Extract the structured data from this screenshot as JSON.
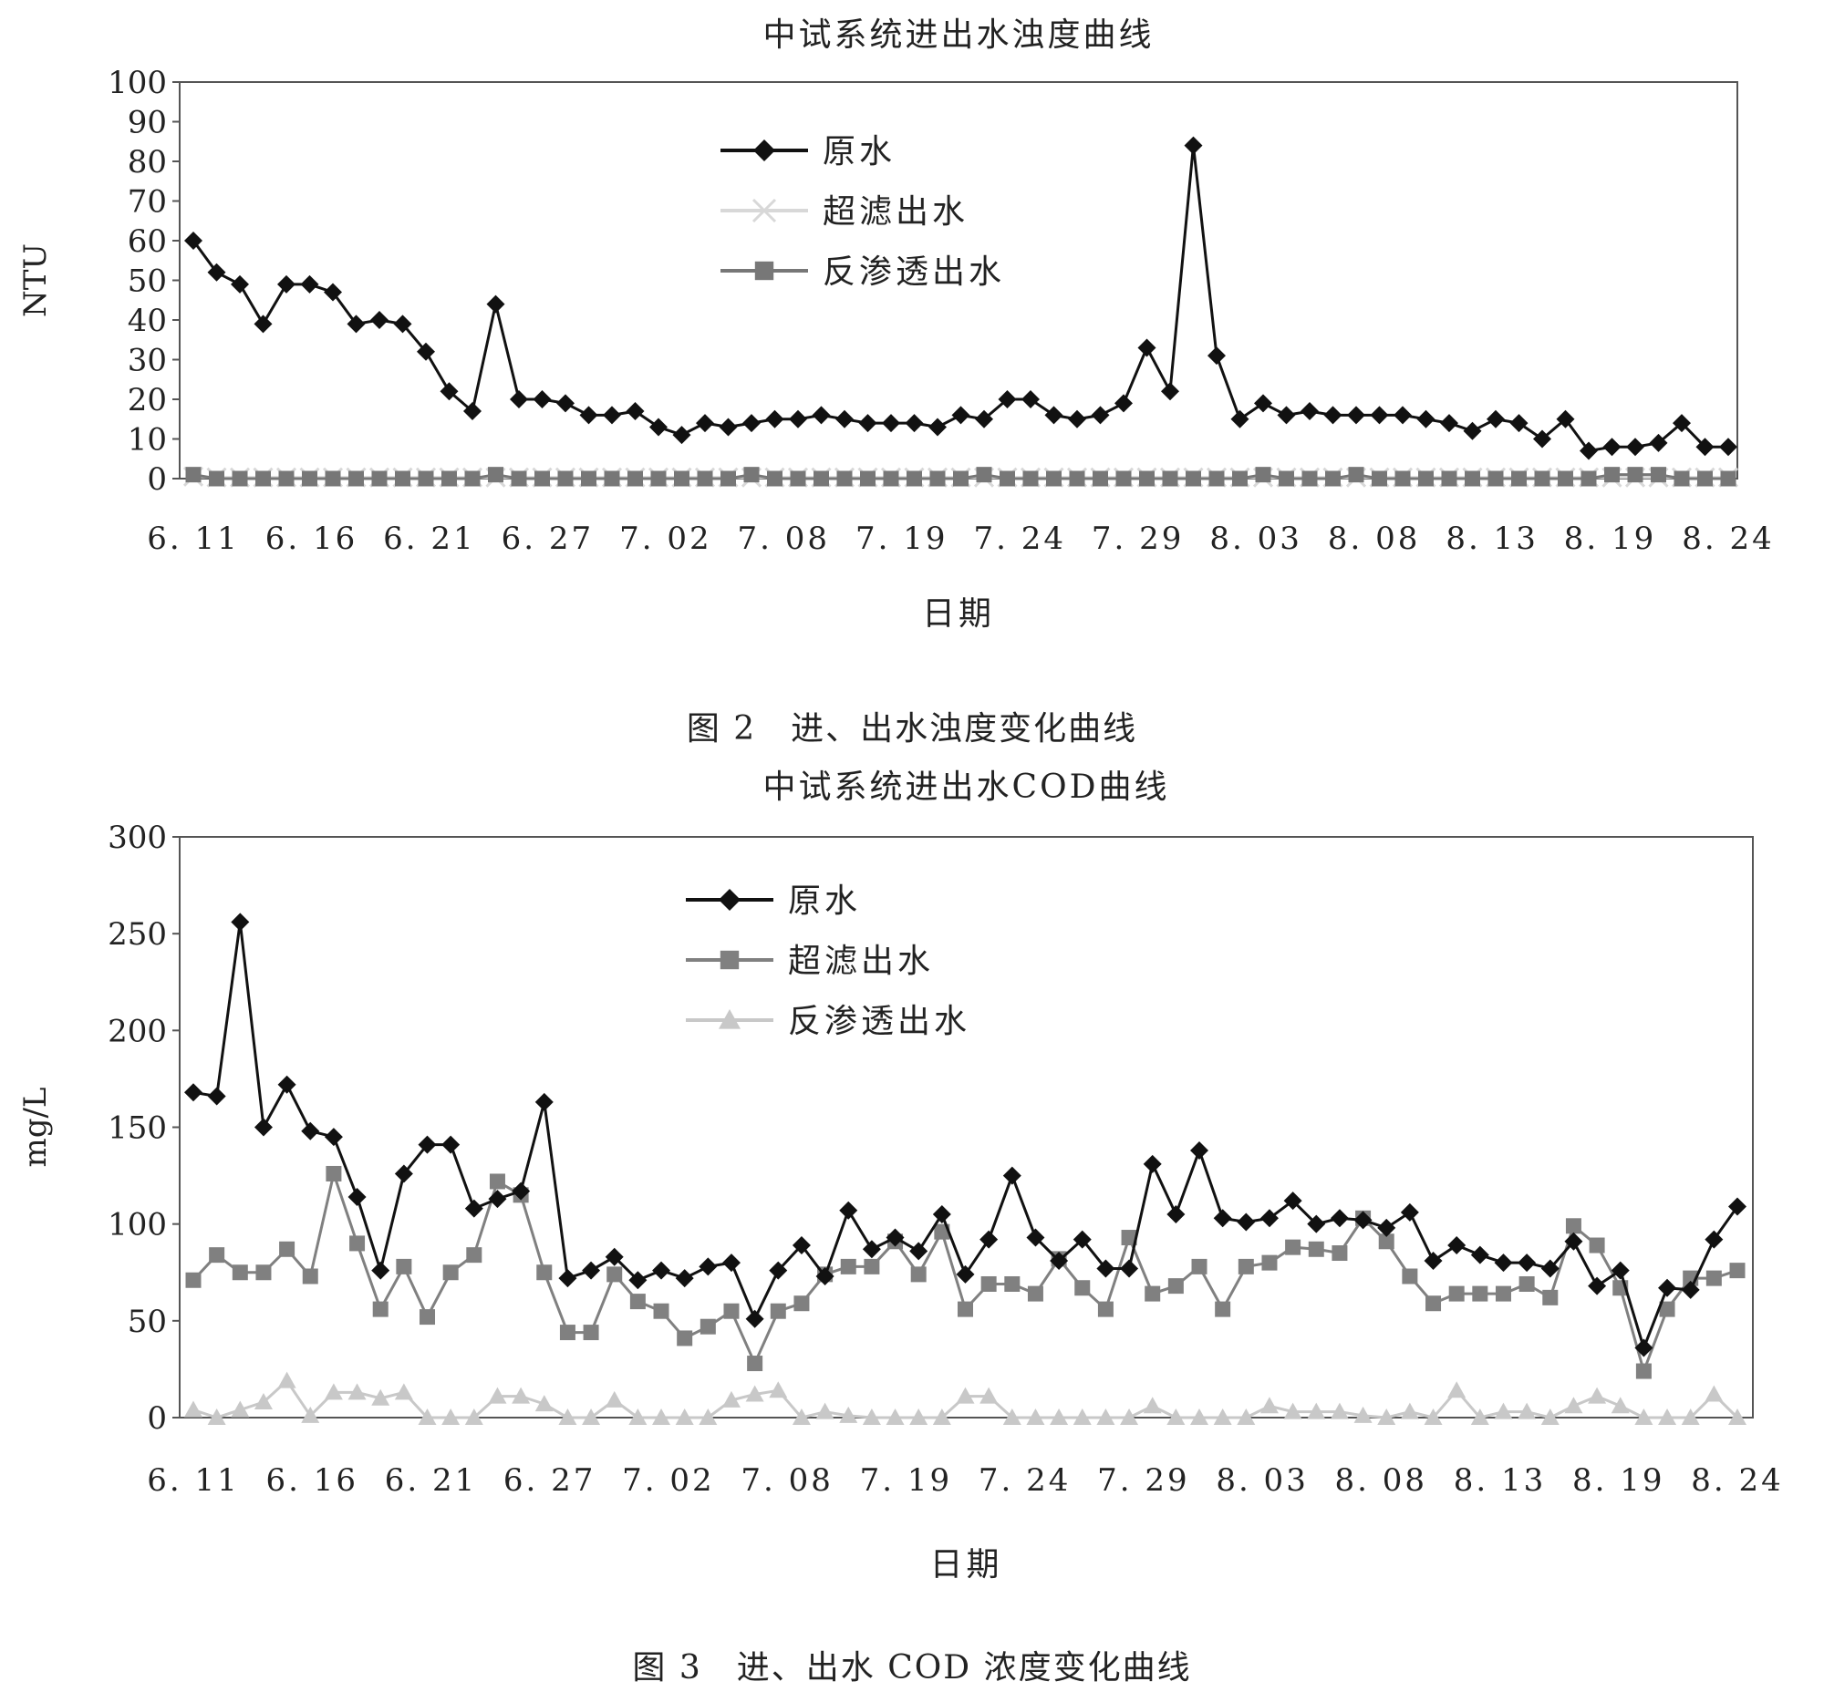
{
  "figures": [
    {
      "caption": "图 2　进、出水浊度变化曲线"
    },
    {
      "caption": "图 3　进、出水 COD 浓度变化曲线"
    }
  ],
  "chart_data": [
    {
      "type": "line",
      "title": "中试系统进出水浊度曲线",
      "xlabel": "日期",
      "ylabel": "NTU",
      "ylim": [
        0,
        100
      ],
      "yticks": [
        0,
        10,
        20,
        30,
        40,
        50,
        60,
        70,
        80,
        90,
        100
      ],
      "grid": false,
      "legend_position": "top-center",
      "x_tick_labels": [
        "6. 11",
        "6. 16",
        "6. 21",
        "6. 27",
        "7. 02",
        "7. 08",
        "7. 19",
        "7. 24",
        "7. 29",
        "8. 03",
        "8. 08",
        "8. 13",
        "8. 19",
        "8. 24"
      ],
      "series": [
        {
          "name": "原水",
          "color": "#111111",
          "marker": "diamond",
          "values": [
            60,
            52,
            49,
            39,
            49,
            49,
            47,
            39,
            40,
            39,
            32,
            22,
            17,
            44,
            20,
            20,
            19,
            16,
            16,
            17,
            13,
            11,
            14,
            13,
            14,
            15,
            15,
            16,
            15,
            14,
            14,
            14,
            13,
            16,
            15,
            20,
            20,
            16,
            15,
            16,
            19,
            33,
            22,
            84,
            31,
            15,
            19,
            16,
            17,
            16,
            16,
            16,
            16,
            15,
            14,
            12,
            15,
            14,
            10,
            15,
            7,
            8,
            8,
            9,
            14,
            8,
            8
          ]
        },
        {
          "name": "超滤出水",
          "color": "#d8d8d8",
          "marker": "x",
          "values": [
            0.5,
            0.3,
            0.3,
            0.3,
            0.3,
            0.3,
            0.3,
            0.3,
            0.3,
            0.3,
            0.3,
            0.3,
            0.3,
            0.3,
            0.3,
            0.3,
            0.3,
            0.3,
            0.3,
            0.3,
            0.3,
            0.3,
            0.3,
            0.3,
            0.3,
            0.3,
            0.3,
            0.3,
            0.3,
            0.3,
            0.3,
            0.3,
            0.3,
            0.3,
            0.3,
            0.3,
            0.3,
            0.3,
            0.3,
            0.3,
            0.3,
            0.3,
            0.3,
            0.3,
            0.3,
            0.3,
            0.3,
            0.3,
            0.3,
            0.3,
            0.3,
            0.3,
            0.3,
            0.3,
            0.3,
            0.3,
            0.3,
            0.3,
            0.3,
            0.3,
            0.3,
            0.3,
            0.3,
            0.3,
            0.3,
            0.3,
            0.3
          ]
        },
        {
          "name": "反渗透出水",
          "color": "#777777",
          "marker": "square",
          "values": [
            1,
            0,
            0,
            0,
            0,
            0,
            0,
            0,
            0,
            0,
            0,
            0,
            0,
            1,
            0,
            0,
            0,
            0,
            0,
            0,
            0,
            0,
            0,
            0,
            1,
            0,
            0,
            0,
            0,
            0,
            0,
            0,
            0,
            0,
            1,
            0,
            0,
            0,
            0,
            0,
            0,
            0,
            0,
            0,
            0,
            0,
            1,
            0,
            0,
            0,
            1,
            0,
            0,
            0,
            0,
            0,
            0,
            0,
            0,
            0,
            0,
            1,
            1,
            1,
            0,
            0,
            0
          ]
        }
      ]
    },
    {
      "type": "line",
      "title": "中试系统进出水COD曲线",
      "xlabel": "日期",
      "ylabel": "mg/L",
      "ylim": [
        0,
        300
      ],
      "yticks": [
        0,
        50,
        100,
        150,
        200,
        250,
        300
      ],
      "grid": false,
      "legend_position": "top-center",
      "x_tick_labels": [
        "6. 11",
        "6. 16",
        "6. 21",
        "6. 27",
        "7. 02",
        "7. 08",
        "7. 19",
        "7. 24",
        "7. 29",
        "8. 03",
        "8. 08",
        "8. 13",
        "8. 19",
        "8. 24"
      ],
      "series": [
        {
          "name": "原水",
          "color": "#111111",
          "marker": "diamond",
          "values": [
            168,
            166,
            256,
            150,
            172,
            148,
            145,
            114,
            76,
            126,
            141,
            141,
            108,
            113,
            117,
            163,
            72,
            76,
            83,
            71,
            76,
            72,
            78,
            80,
            51,
            76,
            89,
            73,
            107,
            87,
            93,
            86,
            105,
            74,
            92,
            125,
            93,
            81,
            92,
            77,
            77,
            131,
            105,
            138,
            103,
            101,
            103,
            112,
            100,
            103,
            102,
            98,
            106,
            81,
            89,
            84,
            80,
            80,
            77,
            91,
            68,
            76,
            36,
            67,
            66,
            92,
            109
          ]
        },
        {
          "name": "超滤出水",
          "color": "#808080",
          "marker": "square",
          "values": [
            71,
            84,
            75,
            75,
            87,
            73,
            126,
            90,
            56,
            78,
            52,
            75,
            84,
            122,
            115,
            75,
            44,
            44,
            74,
            60,
            55,
            41,
            47,
            55,
            28,
            55,
            59,
            74,
            78,
            78,
            91,
            74,
            96,
            56,
            69,
            69,
            64,
            82,
            67,
            56,
            93,
            64,
            68,
            78,
            56,
            78,
            80,
            88,
            87,
            85,
            103,
            91,
            73,
            59,
            64,
            64,
            64,
            69,
            62,
            99,
            89,
            67,
            24,
            56,
            72,
            72,
            76
          ]
        },
        {
          "name": "反渗透出水",
          "color": "#c8c8c8",
          "marker": "triangle",
          "values": [
            4,
            0,
            4,
            8,
            19,
            1,
            13,
            13,
            10,
            13,
            0,
            0,
            0,
            11,
            11,
            7,
            0,
            0,
            9,
            0,
            0,
            0,
            0,
            9,
            12,
            14,
            0,
            3,
            1,
            0,
            0,
            0,
            0,
            11,
            11,
            0,
            0,
            0,
            0,
            0,
            0,
            6,
            0,
            0,
            0,
            0,
            6,
            3,
            3,
            3,
            1,
            0,
            3,
            0,
            14,
            0,
            3,
            3,
            0,
            6,
            11,
            6,
            0,
            0,
            0,
            12,
            0
          ]
        }
      ]
    }
  ]
}
